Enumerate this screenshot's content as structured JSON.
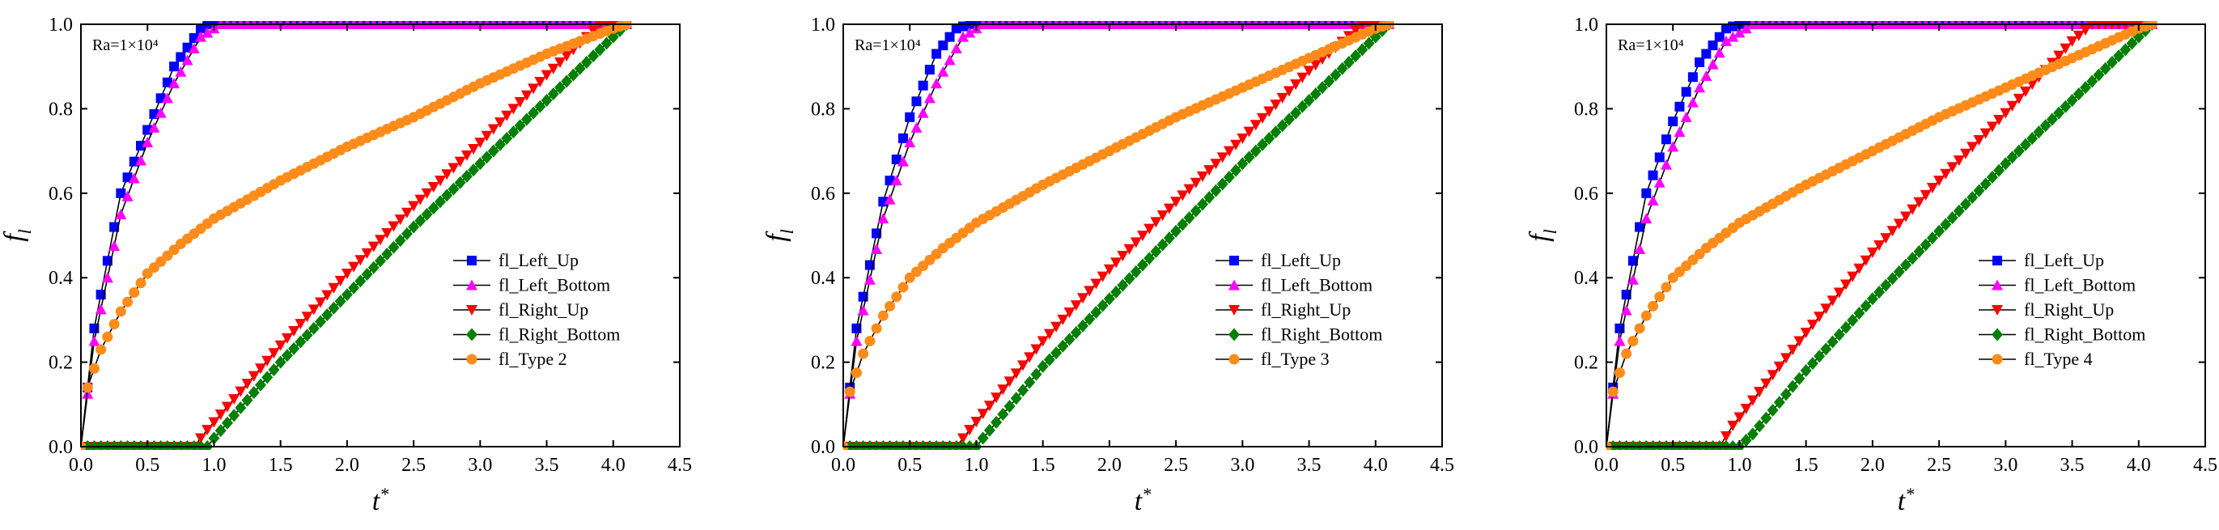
{
  "figure": {
    "panels": [
      {
        "annotation": "Ra=1×10⁴",
        "xlabel_main": "t",
        "xlabel_sup": "*",
        "ylabel_main": "f",
        "ylabel_sub": "l"
      },
      {
        "annotation": "Ra=1×10⁴",
        "xlabel_main": "t",
        "xlabel_sup": "*",
        "ylabel_main": "f",
        "ylabel_sub": "l"
      },
      {
        "annotation": "Ra=1×10⁴",
        "xlabel_main": "t",
        "xlabel_sup": "*",
        "ylabel_main": "f",
        "ylabel_sub": "l"
      }
    ]
  },
  "chart_data": [
    {
      "type": "line",
      "annotation": "Ra=1×10⁴",
      "xlabel": "t*",
      "ylabel": "fl",
      "xlim": [
        0,
        4.5
      ],
      "ylim": [
        0,
        1.0
      ],
      "xticks": [
        "0.0",
        "0.5",
        "1.0",
        "1.5",
        "2.0",
        "2.5",
        "3.0",
        "3.5",
        "4.0",
        "4.5"
      ],
      "yticks": [
        "0.0",
        "0.2",
        "0.4",
        "0.6",
        "0.8",
        "1.0"
      ],
      "legend_position": "lower-right",
      "series": [
        {
          "name": "fl_Left_Up",
          "color": "#0000ff",
          "marker": "square",
          "x": [
            0,
            0.1,
            0.3,
            0.5,
            0.7,
            0.9,
            0.95,
            4.1
          ],
          "y": [
            0,
            0.28,
            0.6,
            0.75,
            0.9,
            0.99,
            1.0,
            1.0
          ]
        },
        {
          "name": "fl_Left_Bottom",
          "color": "#ff00ff",
          "marker": "triangle-up",
          "x": [
            0,
            0.1,
            0.3,
            0.5,
            0.7,
            0.9,
            1.05,
            4.1
          ],
          "y": [
            0,
            0.25,
            0.55,
            0.72,
            0.86,
            0.97,
            1.0,
            1.0
          ]
        },
        {
          "name": "fl_Right_Up",
          "color": "#ff0000",
          "marker": "triangle-down",
          "x": [
            0,
            0.85,
            0.95,
            1.5,
            2.0,
            2.5,
            3.0,
            3.5,
            3.9,
            4.1
          ],
          "y": [
            0,
            0,
            0.04,
            0.24,
            0.41,
            0.57,
            0.72,
            0.88,
            1.0,
            1.0
          ]
        },
        {
          "name": "fl_Right_Bottom",
          "color": "#008000",
          "marker": "diamond",
          "x": [
            0,
            0.95,
            1.0,
            1.5,
            2.0,
            2.5,
            3.0,
            3.5,
            4.1
          ],
          "y": [
            0,
            0,
            0.02,
            0.2,
            0.36,
            0.52,
            0.67,
            0.82,
            1.0
          ]
        },
        {
          "name": "fl_Type 2",
          "color": "#ff8c1a",
          "marker": "circle",
          "x": [
            0,
            0.05,
            0.15,
            0.3,
            0.5,
            0.75,
            1.0,
            1.5,
            2.0,
            2.5,
            3.0,
            3.5,
            4.0,
            4.1
          ],
          "y": [
            0,
            0.14,
            0.23,
            0.32,
            0.41,
            0.48,
            0.54,
            0.63,
            0.71,
            0.78,
            0.86,
            0.93,
            0.99,
            1.0
          ]
        }
      ]
    },
    {
      "type": "line",
      "annotation": "Ra=1×10⁴",
      "xlabel": "t*",
      "ylabel": "fl",
      "xlim": [
        0,
        4.5
      ],
      "ylim": [
        0,
        1.0
      ],
      "xticks": [
        "0.0",
        "0.5",
        "1.0",
        "1.5",
        "2.0",
        "2.5",
        "3.0",
        "3.5",
        "4.0",
        "4.5"
      ],
      "yticks": [
        "0.0",
        "0.2",
        "0.4",
        "0.6",
        "0.8",
        "1.0"
      ],
      "legend_position": "lower-right",
      "series": [
        {
          "name": "fl_Left_Up",
          "color": "#0000ff",
          "marker": "square",
          "x": [
            0,
            0.1,
            0.3,
            0.5,
            0.7,
            0.85,
            0.95,
            4.1
          ],
          "y": [
            0,
            0.28,
            0.58,
            0.78,
            0.93,
            0.99,
            1.0,
            1.0
          ]
        },
        {
          "name": "fl_Left_Bottom",
          "color": "#ff00ff",
          "marker": "triangle-up",
          "x": [
            0,
            0.1,
            0.3,
            0.5,
            0.7,
            0.9,
            1.05,
            4.1
          ],
          "y": [
            0,
            0.25,
            0.54,
            0.72,
            0.86,
            0.97,
            1.0,
            1.0
          ]
        },
        {
          "name": "fl_Right_Up",
          "color": "#ff0000",
          "marker": "triangle-down",
          "x": [
            0,
            0.85,
            0.95,
            1.5,
            2.0,
            2.5,
            3.0,
            3.5,
            3.9,
            4.1
          ],
          "y": [
            0,
            0,
            0.04,
            0.25,
            0.42,
            0.58,
            0.73,
            0.89,
            1.0,
            1.0
          ]
        },
        {
          "name": "fl_Right_Bottom",
          "color": "#008000",
          "marker": "diamond",
          "x": [
            0,
            1.0,
            1.05,
            1.5,
            2.0,
            2.5,
            3.0,
            3.5,
            4.1
          ],
          "y": [
            0,
            0,
            0.02,
            0.19,
            0.35,
            0.51,
            0.67,
            0.82,
            1.0
          ]
        },
        {
          "name": "fl_Type 3",
          "color": "#ff8c1a",
          "marker": "circle",
          "x": [
            0,
            0.05,
            0.15,
            0.3,
            0.5,
            0.75,
            1.0,
            1.5,
            2.0,
            2.5,
            3.0,
            3.5,
            4.0,
            4.1
          ],
          "y": [
            0,
            0.13,
            0.22,
            0.31,
            0.4,
            0.47,
            0.53,
            0.62,
            0.7,
            0.78,
            0.85,
            0.92,
            0.99,
            1.0
          ]
        }
      ]
    },
    {
      "type": "line",
      "annotation": "Ra=1×10⁴",
      "xlabel": "t*",
      "ylabel": "fl",
      "xlim": [
        0,
        4.5
      ],
      "ylim": [
        0,
        1.0
      ],
      "xticks": [
        "0.0",
        "0.5",
        "1.0",
        "1.5",
        "2.0",
        "2.5",
        "3.0",
        "3.5",
        "4.0",
        "4.5"
      ],
      "yticks": [
        "0.0",
        "0.2",
        "0.4",
        "0.6",
        "0.8",
        "1.0"
      ],
      "legend_position": "lower-right",
      "series": [
        {
          "name": "fl_Left_Up",
          "color": "#0000ff",
          "marker": "square",
          "x": [
            0,
            0.1,
            0.3,
            0.5,
            0.7,
            0.9,
            1.0,
            4.1
          ],
          "y": [
            0,
            0.28,
            0.6,
            0.77,
            0.91,
            0.99,
            1.0,
            1.0
          ]
        },
        {
          "name": "fl_Left_Bottom",
          "color": "#ff00ff",
          "marker": "triangle-up",
          "x": [
            0,
            0.1,
            0.3,
            0.5,
            0.7,
            0.9,
            1.1,
            4.1
          ],
          "y": [
            0,
            0.25,
            0.54,
            0.71,
            0.85,
            0.96,
            1.0,
            1.0
          ]
        },
        {
          "name": "fl_Right_Up",
          "color": "#ff0000",
          "marker": "triangle-down",
          "x": [
            0,
            0.85,
            0.95,
            1.5,
            2.0,
            2.5,
            3.0,
            3.5,
            3.65,
            4.1
          ],
          "y": [
            0,
            0,
            0.05,
            0.27,
            0.46,
            0.63,
            0.79,
            0.96,
            1.0,
            1.0
          ]
        },
        {
          "name": "fl_Right_Bottom",
          "color": "#008000",
          "marker": "diamond",
          "x": [
            0,
            1.0,
            1.1,
            1.5,
            2.0,
            2.5,
            3.0,
            3.5,
            4.1
          ],
          "y": [
            0,
            0,
            0.03,
            0.18,
            0.35,
            0.51,
            0.67,
            0.82,
            1.0
          ]
        },
        {
          "name": "fl_Type 4",
          "color": "#ff8c1a",
          "marker": "circle",
          "x": [
            0,
            0.05,
            0.15,
            0.3,
            0.5,
            0.75,
            1.0,
            1.5,
            2.0,
            2.5,
            3.0,
            3.5,
            4.0,
            4.1
          ],
          "y": [
            0,
            0.13,
            0.22,
            0.31,
            0.4,
            0.47,
            0.53,
            0.62,
            0.7,
            0.78,
            0.85,
            0.92,
            0.99,
            1.0
          ]
        }
      ]
    }
  ]
}
